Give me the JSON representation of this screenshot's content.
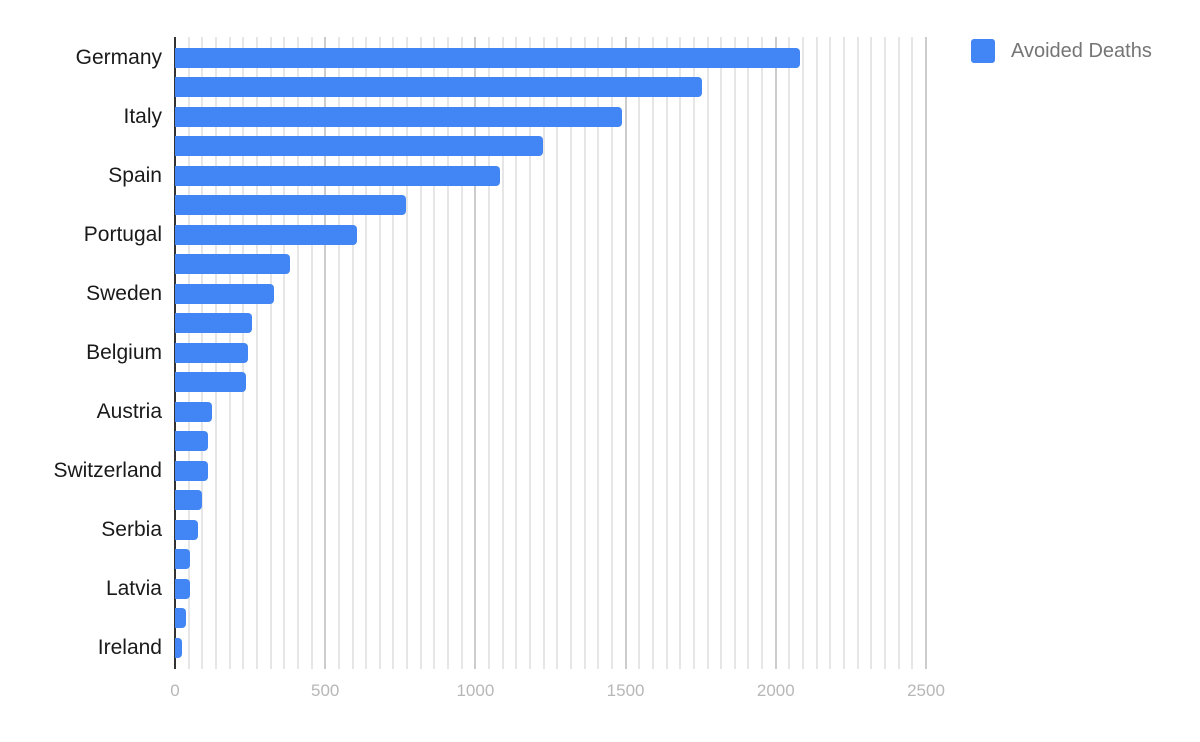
{
  "chart_data": {
    "type": "bar",
    "orientation": "horizontal",
    "title": "",
    "xlabel": "",
    "ylabel": "",
    "xlim": [
      0,
      2500
    ],
    "grid": true,
    "legend_position": "right",
    "x_ticks": [
      "0",
      "500",
      "1000",
      "1500",
      "2000",
      "2500"
    ],
    "category_labels_shown": [
      "Germany",
      "Italy",
      "Spain",
      "Portugal",
      "Sweden",
      "Belgium",
      "Austria",
      "Switzerland",
      "Serbia",
      "Latvia",
      "Ireland"
    ],
    "categories": [
      "Germany",
      "",
      "Italy",
      "",
      "Spain",
      "",
      "Portugal",
      "",
      "Sweden",
      "",
      "Belgium",
      "",
      "Austria",
      "",
      "Switzerland",
      "",
      "Serbia",
      "",
      "Latvia",
      "",
      "Ireland"
    ],
    "series": [
      {
        "name": "Avoided Deaths",
        "color": "#4285f4",
        "values": [
          2080,
          1754,
          1487,
          1226,
          1082,
          768,
          607,
          382,
          329,
          256,
          243,
          236,
          122,
          109,
          109,
          90,
          77,
          50,
          50,
          36,
          22
        ]
      }
    ]
  },
  "legend": {
    "label": "Avoided Deaths",
    "color": "#4285f4"
  }
}
